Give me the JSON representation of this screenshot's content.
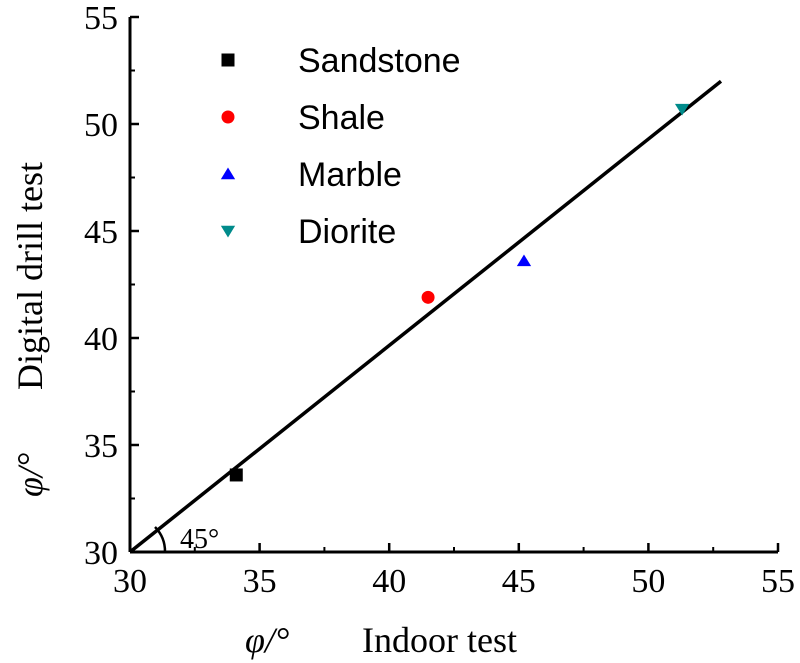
{
  "chart_data": {
    "type": "scatter",
    "xlabel": {
      "symbol": "φ/°",
      "text": "Indoor test"
    },
    "ylabel": {
      "symbol": "φ/°",
      "text": "Digital drill test"
    },
    "xlim": [
      30,
      55
    ],
    "ylim": [
      30,
      55
    ],
    "xticks": [
      30,
      35,
      40,
      45,
      50,
      55
    ],
    "yticks": [
      30,
      35,
      40,
      45,
      50,
      55
    ],
    "grid": false,
    "legend_position": "top-left",
    "series": [
      {
        "name": "Sandstone",
        "marker": "square",
        "color": "#000000",
        "points": [
          [
            34.1,
            33.6
          ]
        ]
      },
      {
        "name": "Shale",
        "marker": "circle",
        "color": "#ff0000",
        "points": [
          [
            41.5,
            41.9
          ]
        ]
      },
      {
        "name": "Marble",
        "marker": "triangle-up",
        "color": "#0000ff",
        "points": [
          [
            45.2,
            43.6
          ]
        ]
      },
      {
        "name": "Diorite",
        "marker": "triangle-down",
        "color": "#008b8b",
        "points": [
          [
            51.3,
            50.7
          ]
        ]
      }
    ],
    "reference_line": {
      "from": [
        30,
        30
      ],
      "to": [
        52.8,
        52.0
      ],
      "color": "#000000"
    },
    "annotation": {
      "text": "45°"
    }
  }
}
